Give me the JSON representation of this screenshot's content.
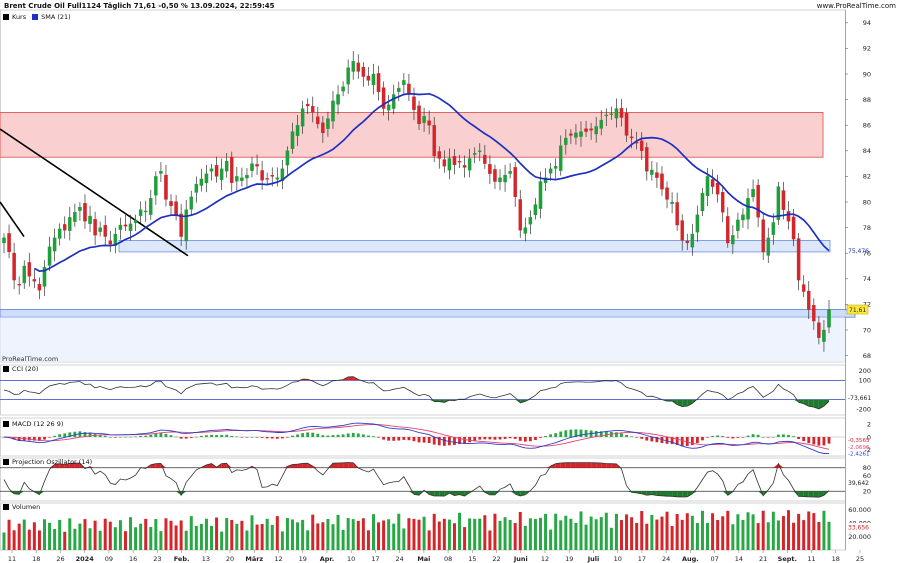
{
  "header": {
    "title": "Brent Crude Oil Full1124 Täglich 71,61 -0,50 % 13.09.2024, 22:59:45",
    "site": "www.ProRealTime.com"
  },
  "price_panel": {
    "legend": [
      {
        "label": "Kurs",
        "color": "#000000"
      },
      {
        "label": "SMA (21)",
        "color": "#1f2fbf"
      }
    ],
    "watermark": "ProRealTime.com",
    "last_price_label": "71,61",
    "sma_label": "75,476",
    "y_ticks": [
      "94",
      "92",
      "90",
      "88",
      "86",
      "84",
      "82",
      "80",
      "78",
      "76",
      "74",
      "72",
      "70",
      "68"
    ]
  },
  "cci_panel": {
    "title": "CCI (20)",
    "y_ticks": [
      "200",
      "100",
      "-200"
    ],
    "value_label": "-73,661"
  },
  "macd_panel": {
    "title": "MACD (12 26 9)",
    "y_ticks": [
      "2",
      "0",
      "-2"
    ],
    "value_labels": [
      "-0,3565",
      "-2,0696",
      "-2,4261"
    ]
  },
  "proj_panel": {
    "title": "Projection Oszillator (14)",
    "y_ticks": [
      "80",
      "60",
      "20"
    ],
    "value_label": "39,642"
  },
  "volume_panel": {
    "title": "Volumen",
    "y_ticks": [
      "60.000",
      "40.000",
      "20.000"
    ],
    "value_label": "33.656"
  },
  "x_axis": {
    "labels": [
      "11",
      "18",
      "26",
      "2024",
      "09",
      "16",
      "23",
      "Feb.",
      "13",
      "20",
      "März",
      "12",
      "19",
      "Apr.",
      "10",
      "17",
      "24",
      "Mai",
      "08",
      "15",
      "22",
      "Juni",
      "12",
      "19",
      "Juli",
      "10",
      "17",
      "24",
      "Aug.",
      "07",
      "14",
      "21",
      "Sept.",
      "11",
      "18",
      "25"
    ]
  },
  "chart_data": {
    "type": "candlestick",
    "x_start": "2023-12-11",
    "x_end": "2024-09-13",
    "ylim": [
      67.5,
      95
    ],
    "sma_period": 21,
    "resistance_zone": [
      83.5,
      87.0
    ],
    "support_zones": [
      [
        76.1,
        77.0
      ],
      [
        71.0,
        71.6
      ]
    ],
    "close": [
      77.2,
      76.1,
      73.9,
      73.5,
      75.0,
      74.2,
      73.8,
      73.1,
      74.9,
      76.5,
      77.2,
      77.9,
      77.8,
      78.8,
      79.2,
      79.6,
      78.5,
      78.9,
      77.4,
      78.0,
      77.3,
      76.7,
      77.5,
      78.2,
      78.1,
      78.3,
      78.6,
      79.4,
      79.3,
      80.3,
      82.0,
      82.4,
      80.2,
      79.7,
      79.0,
      77.3,
      79.4,
      80.4,
      81.4,
      81.8,
      82.2,
      82.6,
      82.0,
      82.6,
      83.2,
      81.5,
      82.0,
      81.9,
      82.1,
      83.0,
      82.8,
      81.7,
      81.8,
      82.0,
      81.9,
      82.6,
      84.0,
      85.5,
      86.0,
      87.3,
      87.5,
      87.0,
      86.1,
      85.4,
      86.5,
      87.9,
      88.4,
      89.0,
      90.5,
      91.0,
      90.2,
      89.8,
      89.5,
      90.0,
      88.6,
      87.3,
      87.6,
      88.4,
      88.9,
      89.5,
      88.4,
      87.2,
      86.1,
      86.7,
      86.0,
      83.6,
      83.4,
      82.8,
      83.4,
      82.9,
      83.1,
      82.7,
      83.4,
      83.8,
      84.0,
      83.0,
      82.2,
      81.6,
      81.9,
      82.1,
      82.4,
      80.4,
      77.8,
      78.0,
      78.8,
      79.8,
      81.6,
      81.9,
      82.6,
      82.8,
      84.4,
      85.0,
      85.2,
      85.4,
      85.5,
      85.5,
      85.6,
      85.9,
      86.4,
      86.8,
      86.9,
      87.3,
      86.6,
      85.2,
      85.0,
      84.6,
      84.0,
      82.4,
      82.5,
      81.9,
      81.0,
      80.2,
      80.0,
      78.2,
      77.0,
      76.8,
      77.5,
      79.0,
      80.7,
      82.0,
      81.2,
      80.6,
      79.2,
      76.8,
      77.4,
      78.6,
      79.0,
      80.3,
      81.0,
      78.8,
      76.1,
      77.2,
      78.4,
      81.2,
      79.4,
      78.5,
      77.1,
      73.9,
      73.0,
      71.6,
      70.7,
      69.4,
      70.0,
      71.6
    ]
  }
}
